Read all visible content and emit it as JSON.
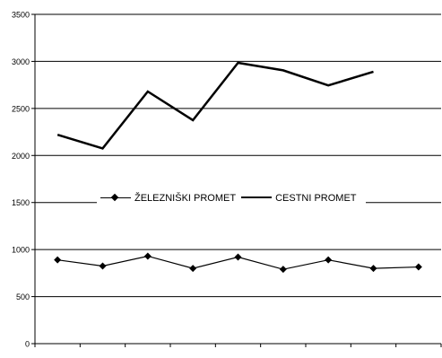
{
  "chart_data": {
    "type": "line",
    "title": "",
    "xlabel": "",
    "ylabel": "",
    "ylim": [
      0,
      3500
    ],
    "yticks": [
      0,
      500,
      1000,
      1500,
      2000,
      2500,
      3000,
      3500
    ],
    "n_points": 9,
    "grid": "horizontal",
    "legend_placement": "center",
    "series": [
      {
        "name": "ŽELEZNIŠKI PROMET",
        "marker": "diamond",
        "color": "#000000",
        "values": [
          890,
          825,
          930,
          800,
          920,
          790,
          890,
          800,
          815
        ]
      },
      {
        "name": "CESTNI PROMET",
        "marker": "none",
        "color": "#000000",
        "values": [
          2220,
          2075,
          2680,
          2375,
          2985,
          2905,
          2745,
          2890,
          null
        ]
      }
    ]
  }
}
